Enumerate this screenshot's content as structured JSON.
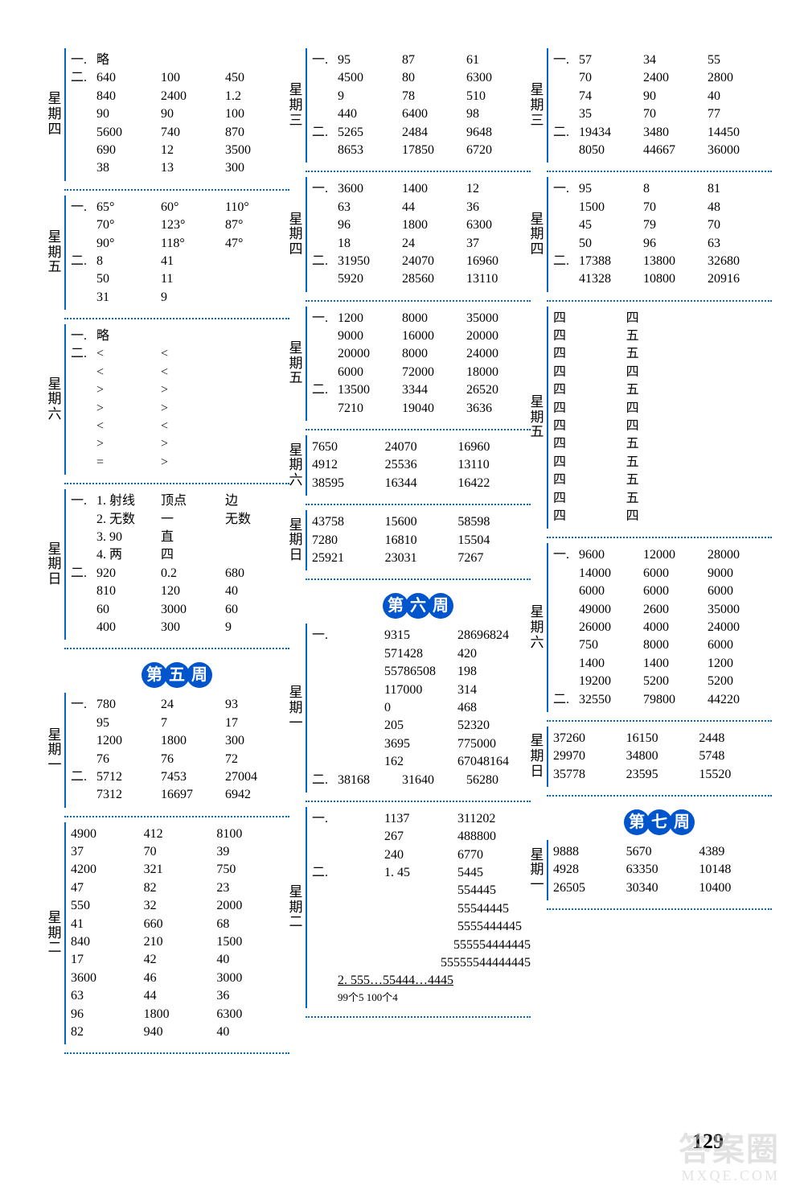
{
  "pageNumber": "129",
  "watermark": "答案圈",
  "watermarkSub": "MXQE.COM",
  "weekBadges": {
    "w5": [
      "第",
      "五",
      "周"
    ],
    "w6": [
      "第",
      "六",
      "周"
    ],
    "w7": [
      "第",
      "七",
      "周"
    ]
  },
  "col1": {
    "thu": {
      "label": "星期四",
      "s1": [
        [
          "一.",
          "略"
        ]
      ],
      "s2": [
        [
          "二.",
          "640",
          "100",
          "450"
        ],
        [
          "",
          "840",
          "2400",
          "1.2"
        ],
        [
          "",
          "90",
          "90",
          "100"
        ],
        [
          "",
          "5600",
          "740",
          "870"
        ],
        [
          "",
          "690",
          "12",
          "3500"
        ],
        [
          "",
          "38",
          "13",
          "300"
        ]
      ]
    },
    "fri": {
      "label": "星期五",
      "s1": [
        [
          "一.",
          "65°",
          "60°",
          "110°"
        ],
        [
          "",
          "70°",
          "123°",
          "87°"
        ],
        [
          "",
          "90°",
          "118°",
          "47°"
        ]
      ],
      "s2": [
        [
          "二.",
          "8",
          "41",
          ""
        ],
        [
          "",
          "50",
          "11",
          ""
        ],
        [
          "",
          "31",
          "9",
          ""
        ]
      ]
    },
    "sat": {
      "label": "星期六",
      "s1": [
        [
          "一.",
          "略",
          "",
          ""
        ]
      ],
      "s2": [
        [
          "二.",
          "<",
          "<",
          ""
        ],
        [
          "",
          "<",
          "<",
          ""
        ],
        [
          "",
          ">",
          ">",
          ""
        ],
        [
          "",
          ">",
          ">",
          ""
        ],
        [
          "",
          "<",
          "<",
          ""
        ],
        [
          "",
          ">",
          ">",
          ""
        ],
        [
          "",
          "=",
          ">",
          ""
        ]
      ]
    },
    "sun": {
      "label": "星期日",
      "s1": [
        [
          "一.",
          "1. 射线",
          "顶点",
          "边"
        ],
        [
          "",
          "2. 无数",
          "一",
          "无数"
        ],
        [
          "",
          "3. 90",
          "直",
          ""
        ],
        [
          "",
          "4. 两",
          "四",
          ""
        ]
      ],
      "s2": [
        [
          "二.",
          "920",
          "0.2",
          "680"
        ],
        [
          "",
          "810",
          "120",
          "40"
        ],
        [
          "",
          "60",
          "3000",
          "60"
        ],
        [
          "",
          "400",
          "300",
          "9"
        ]
      ]
    },
    "w5mon": {
      "label": "星期一",
      "s1": [
        [
          "一.",
          "780",
          "24",
          "93"
        ],
        [
          "",
          "95",
          "7",
          "17"
        ],
        [
          "",
          "1200",
          "1800",
          "300"
        ],
        [
          "",
          "76",
          "76",
          "72"
        ]
      ],
      "s2": [
        [
          "二.",
          "5712",
          "7453",
          "27004"
        ],
        [
          "",
          "7312",
          "16697",
          "6942"
        ]
      ]
    },
    "w5tue": {
      "label": "星期二",
      "rows": [
        [
          "4900",
          "412",
          "8100"
        ],
        [
          "37",
          "70",
          "39"
        ],
        [
          "4200",
          "321",
          "750"
        ],
        [
          "47",
          "82",
          "23"
        ],
        [
          "550",
          "32",
          "2000"
        ],
        [
          "41",
          "660",
          "68"
        ],
        [
          "840",
          "210",
          "1500"
        ],
        [
          "17",
          "42",
          "40"
        ],
        [
          "3600",
          "46",
          "3000"
        ],
        [
          "63",
          "44",
          "36"
        ],
        [
          "96",
          "1800",
          "6300"
        ],
        [
          "82",
          "940",
          "40"
        ]
      ]
    }
  },
  "col2": {
    "wed": {
      "label": "星期三",
      "s1": [
        [
          "一.",
          "95",
          "87",
          "61"
        ],
        [
          "",
          "4500",
          "80",
          "6300"
        ],
        [
          "",
          "9",
          "78",
          "510"
        ],
        [
          "",
          "440",
          "6400",
          "98"
        ]
      ],
      "s2": [
        [
          "二.",
          "5265",
          "2484",
          "9648"
        ],
        [
          "",
          "8653",
          "17850",
          "6720"
        ]
      ]
    },
    "thu": {
      "label": "星期四",
      "s1": [
        [
          "一.",
          "3600",
          "1400",
          "12"
        ],
        [
          "",
          "63",
          "44",
          "36"
        ],
        [
          "",
          "96",
          "1800",
          "6300"
        ],
        [
          "",
          "18",
          "24",
          "37"
        ]
      ],
      "s2": [
        [
          "二.",
          "31950",
          "24070",
          "16960"
        ],
        [
          "",
          "5920",
          "28560",
          "13110"
        ]
      ]
    },
    "fri": {
      "label": "星期五",
      "s1": [
        [
          "一.",
          "1200",
          "8000",
          "35000"
        ],
        [
          "",
          "9000",
          "16000",
          "20000"
        ],
        [
          "",
          "20000",
          "8000",
          "24000"
        ],
        [
          "",
          "6000",
          "72000",
          "18000"
        ]
      ],
      "s2": [
        [
          "二.",
          "13500",
          "3344",
          "26520"
        ],
        [
          "",
          "7210",
          "19040",
          "3636"
        ]
      ]
    },
    "sat": {
      "label": "星期六",
      "rows": [
        [
          "7650",
          "24070",
          "16960"
        ],
        [
          "4912",
          "25536",
          "13110"
        ],
        [
          "38595",
          "16344",
          "16422"
        ]
      ]
    },
    "sun": {
      "label": "星期日",
      "rows": [
        [
          "43758",
          "15600",
          "58598"
        ],
        [
          "7280",
          "16810",
          "15504"
        ],
        [
          "25921",
          "23031",
          "7267"
        ]
      ]
    },
    "w6mon": {
      "label": "星期一",
      "s1": [
        [
          "一.",
          "9315",
          "28696824"
        ],
        [
          "",
          "571428",
          "420"
        ],
        [
          "",
          "55786508",
          "198"
        ],
        [
          "",
          "117000",
          "314"
        ],
        [
          "",
          "0",
          "468"
        ],
        [
          "",
          "205",
          "52320"
        ],
        [
          "",
          "3695",
          "775000"
        ],
        [
          "",
          "162",
          "67048164"
        ]
      ],
      "s2": [
        [
          "二.",
          "38168",
          "31640",
          "56280"
        ]
      ]
    },
    "w6tue": {
      "label": "星期二",
      "s1": [
        [
          "一.",
          "1137",
          "311202"
        ],
        [
          "",
          "267",
          "488800"
        ],
        [
          "",
          "240",
          "6770"
        ]
      ],
      "s2": [
        [
          "二.",
          "1. 45",
          "5445"
        ],
        [
          "",
          "",
          "554445"
        ],
        [
          "",
          "",
          "55544445"
        ],
        [
          "",
          "",
          "5555444445"
        ],
        [
          "",
          "",
          "555554444445"
        ],
        [
          "",
          "",
          "55555544444445"
        ]
      ],
      "pattern": "2. 555…55444…4445",
      "patternNote": "99个5 100个4"
    }
  },
  "col3": {
    "wed": {
      "label": "星期三",
      "s1": [
        [
          "一.",
          "57",
          "34",
          "55"
        ],
        [
          "",
          "70",
          "2400",
          "2800"
        ],
        [
          "",
          "74",
          "90",
          "40"
        ],
        [
          "",
          "35",
          "70",
          "77"
        ]
      ],
      "s2": [
        [
          "二.",
          "19434",
          "3480",
          "14450"
        ],
        [
          "",
          "8050",
          "44667",
          "36000"
        ]
      ]
    },
    "thu": {
      "label": "星期四",
      "s1": [
        [
          "一.",
          "95",
          "8",
          "81"
        ],
        [
          "",
          "1500",
          "70",
          "48"
        ],
        [
          "",
          "45",
          "79",
          "70"
        ],
        [
          "",
          "50",
          "96",
          "63"
        ]
      ],
      "s2": [
        [
          "二.",
          "17388",
          "13800",
          "32680"
        ],
        [
          "",
          "41328",
          "10800",
          "20916"
        ]
      ]
    },
    "fri": {
      "label": "星期五",
      "rows": [
        [
          "四",
          "四"
        ],
        [
          "四",
          "五"
        ],
        [
          "四",
          "五"
        ],
        [
          "四",
          "四"
        ],
        [
          "四",
          "五"
        ],
        [
          "四",
          "四"
        ],
        [
          "四",
          "四"
        ],
        [
          "四",
          "五"
        ],
        [
          "四",
          "五"
        ],
        [
          "四",
          "五"
        ],
        [
          "四",
          "五"
        ],
        [
          "四",
          "四"
        ]
      ]
    },
    "sat": {
      "label": "星期六",
      "s1": [
        [
          "一.",
          "9600",
          "12000",
          "28000"
        ],
        [
          "",
          "14000",
          "6000",
          "9000"
        ],
        [
          "",
          "6000",
          "6000",
          "6000"
        ],
        [
          "",
          "49000",
          "2600",
          "35000"
        ],
        [
          "",
          "26000",
          "4000",
          "24000"
        ],
        [
          "",
          "750",
          "8000",
          "6000"
        ],
        [
          "",
          "1400",
          "1400",
          "1200"
        ],
        [
          "",
          "19200",
          "5200",
          "5200"
        ]
      ],
      "s2": [
        [
          "二.",
          "32550",
          "79800",
          "44220"
        ]
      ]
    },
    "sun": {
      "label": "星期日",
      "rows": [
        [
          "37260",
          "16150",
          "2448"
        ],
        [
          "29970",
          "34800",
          "5748"
        ],
        [
          "35778",
          "23595",
          "15520"
        ]
      ]
    },
    "w7mon": {
      "label": "星期一",
      "rows": [
        [
          "9888",
          "5670",
          "4389"
        ],
        [
          "4928",
          "63350",
          "10148"
        ],
        [
          "26505",
          "30340",
          "10400"
        ]
      ]
    }
  }
}
